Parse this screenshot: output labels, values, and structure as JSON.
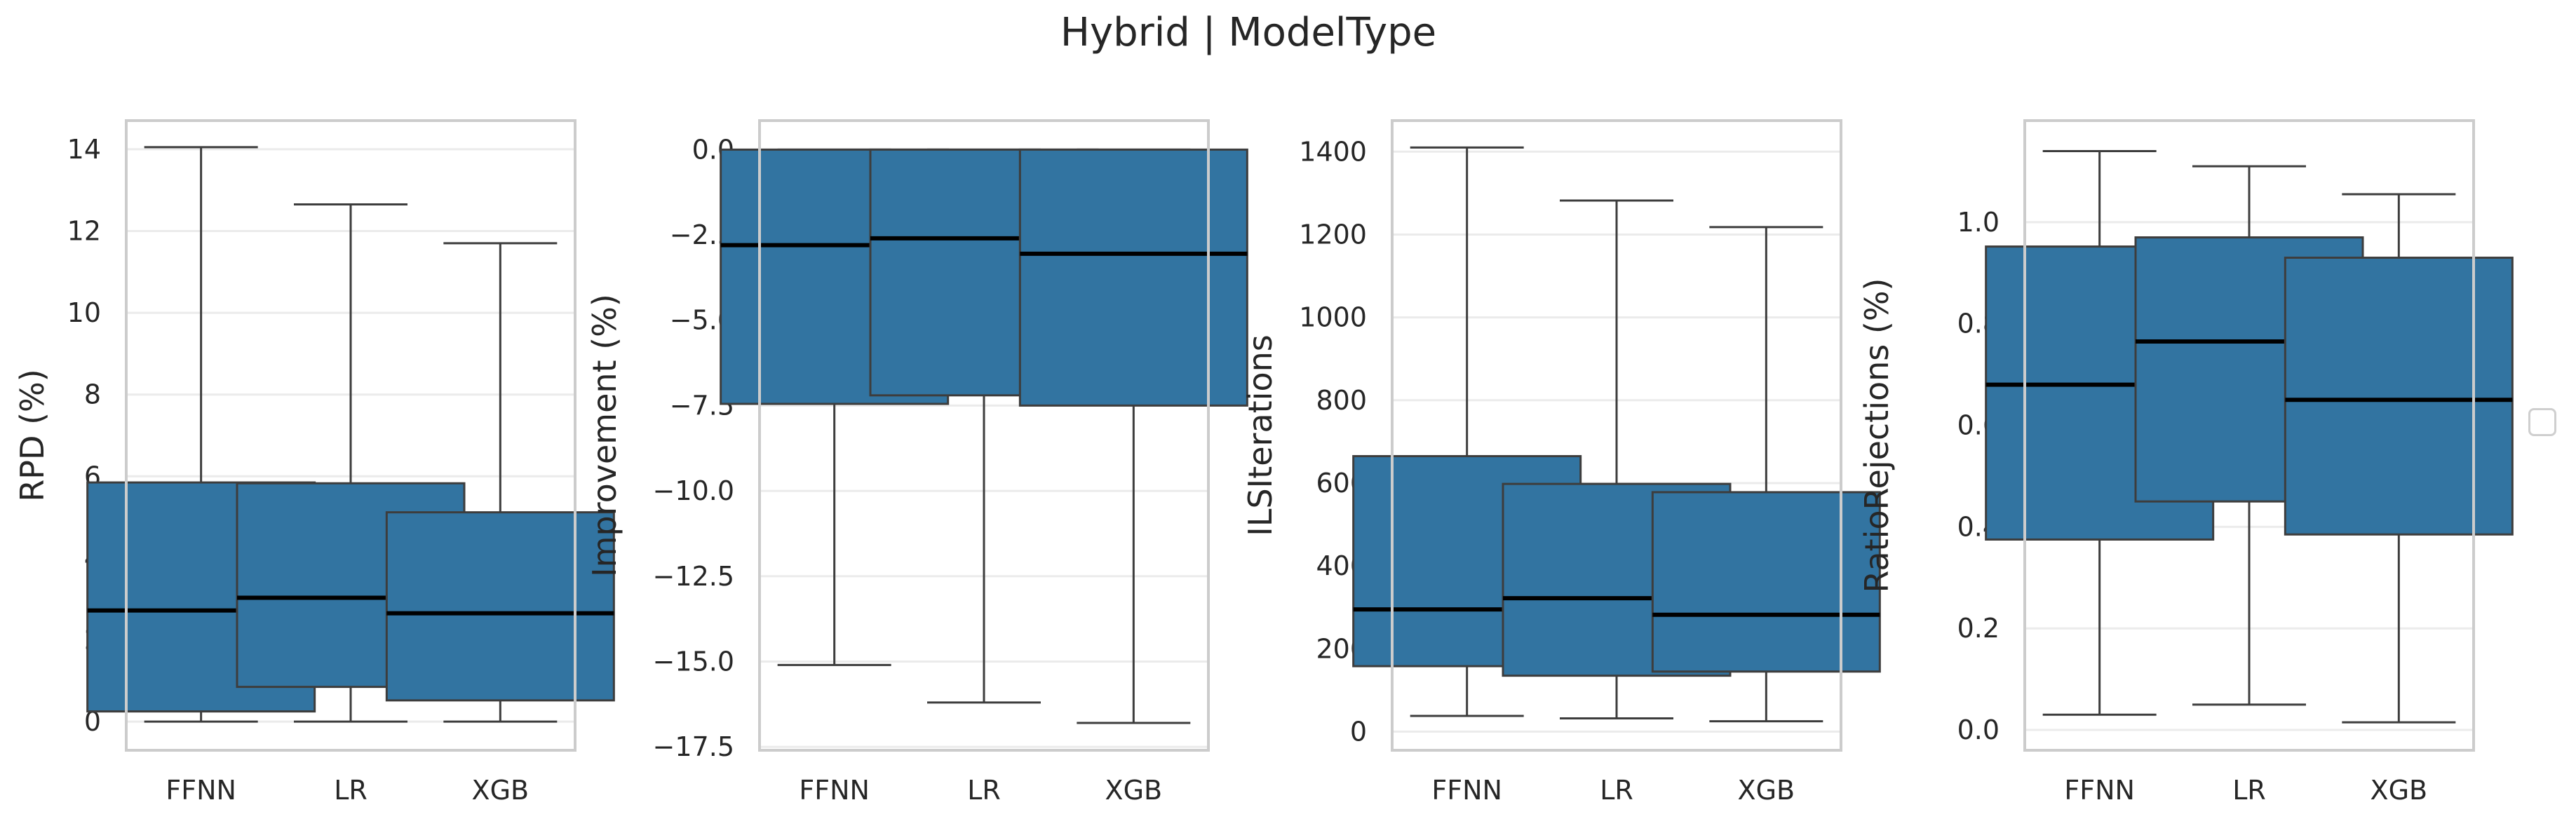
{
  "figure_title": "Hybrid | ModelType",
  "colors": {
    "box": "#3274a1",
    "edge": "#3d3d3d",
    "median": "#000000",
    "grid": "#ebebeb",
    "frame": "#cccccc"
  },
  "chart_data": [
    {
      "type": "box",
      "title": "",
      "xlabel": "",
      "ylabel": "RPD (%)",
      "categories": [
        "FFNN",
        "LR",
        "XGB"
      ],
      "ylim": [
        -0.7,
        14.7
      ],
      "yticks": [
        0,
        2,
        4,
        6,
        8,
        10,
        12,
        14
      ],
      "ytick_labels": [
        "0",
        "2",
        "4",
        "6",
        "8",
        "10",
        "12",
        "14"
      ],
      "boxes": [
        {
          "whislo": 0.0,
          "q1": 0.25,
          "med": 2.72,
          "q3": 5.85,
          "whishi": 14.05
        },
        {
          "whislo": 0.0,
          "q1": 0.85,
          "med": 3.03,
          "q3": 5.83,
          "whishi": 12.65
        },
        {
          "whislo": 0.0,
          "q1": 0.52,
          "med": 2.65,
          "q3": 5.12,
          "whishi": 11.7
        }
      ]
    },
    {
      "type": "box",
      "title": "",
      "xlabel": "",
      "ylabel": "Improvement (%)",
      "categories": [
        "FFNN",
        "LR",
        "XGB"
      ],
      "ylim": [
        -17.6,
        0.85
      ],
      "yticks": [
        0,
        -2.5,
        -5,
        -7.5,
        -10,
        -12.5,
        -15,
        -17.5
      ],
      "ytick_labels": [
        "0.0",
        "−2.5",
        "−5.0",
        "−7.5",
        "−10.0",
        "−12.5",
        "−15.0",
        "−17.5"
      ],
      "boxes": [
        {
          "whislo": -15.1,
          "q1": -7.45,
          "med": -2.8,
          "q3": 0.0,
          "whishi": 0.0
        },
        {
          "whislo": -16.2,
          "q1": -7.2,
          "med": -2.6,
          "q3": 0.0,
          "whishi": 0.0
        },
        {
          "whislo": -16.8,
          "q1": -7.5,
          "med": -3.05,
          "q3": 0.0,
          "whishi": 0.0
        }
      ]
    },
    {
      "type": "box",
      "title": "",
      "xlabel": "",
      "ylabel": "ILSIterations",
      "categories": [
        "FFNN",
        "LR",
        "XGB"
      ],
      "ylim": [
        -45,
        1475
      ],
      "yticks": [
        0,
        200,
        400,
        600,
        800,
        1000,
        1200,
        1400
      ],
      "ytick_labels": [
        "0",
        "200",
        "400",
        "600",
        "800",
        "1000",
        "1200",
        "1400"
      ],
      "boxes": [
        {
          "whislo": 38,
          "q1": 158,
          "med": 295,
          "q3": 665,
          "whishi": 1410
        },
        {
          "whislo": 32,
          "q1": 135,
          "med": 322,
          "q3": 598,
          "whishi": 1282
        },
        {
          "whislo": 25,
          "q1": 145,
          "med": 282,
          "q3": 578,
          "whishi": 1218
        }
      ]
    },
    {
      "type": "box",
      "title": "",
      "xlabel": "",
      "ylabel": "RatioRejections (%)",
      "categories": [
        "FFNN",
        "LR",
        "XGB"
      ],
      "ylim": [
        -0.04,
        1.2
      ],
      "yticks": [
        0.0,
        0.2,
        0.4,
        0.6,
        0.8,
        1.0
      ],
      "ytick_labels": [
        "0.0",
        "0.2",
        "0.4",
        "0.6",
        "0.8",
        "1.0"
      ],
      "boxes": [
        {
          "whislo": 0.03,
          "q1": 0.375,
          "med": 0.68,
          "q3": 0.952,
          "whishi": 1.14
        },
        {
          "whislo": 0.05,
          "q1": 0.45,
          "med": 0.765,
          "q3": 0.97,
          "whishi": 1.11
        },
        {
          "whislo": 0.015,
          "q1": 0.385,
          "med": 0.65,
          "q3": 0.93,
          "whishi": 1.055
        }
      ]
    }
  ]
}
